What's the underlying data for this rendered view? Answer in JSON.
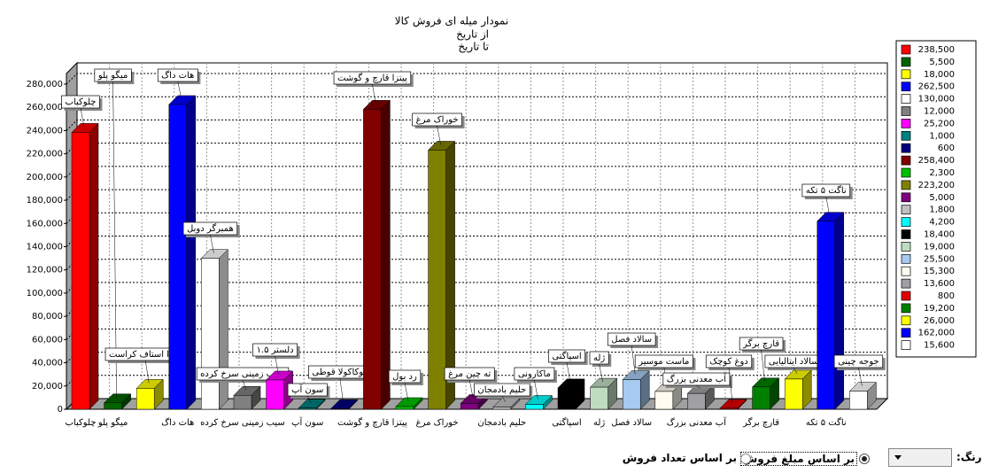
{
  "chart_data": {
    "type": "bar3d",
    "title": "نمودار میله ای فروش کالا",
    "subtitle_from": "از تاریخ",
    "subtitle_to": "تا تاریخ",
    "categories": [
      "چلوکباب",
      "میگو پلو",
      null,
      "هات داگ",
      null,
      "سیب زمینی سرخ کرده",
      null,
      "سون آپ",
      null,
      "پیتزا قارچ و گوشت",
      null,
      "خوراک مرغ",
      null,
      "حلیم بادمجان",
      null,
      "اسپاگتی",
      "ژله",
      "سالاد فصل",
      null,
      "آب معدنی بزرگ",
      null,
      "قارچ برگر",
      null,
      "ناگت ۵ تکه",
      null
    ],
    "bar_labels": [
      "چلوکباب",
      "میگو پلو",
      "پیتزا استاف کراست",
      "هات داگ",
      "همبرگر دوبل",
      "سیب زمینی سرخ کرده",
      "دلستر ۱.۵",
      "سون آپ",
      "کوکاکولا قوطی",
      "پیتزا قارچ و گوشت",
      "رد بول",
      "خوراک مرغ",
      "ته چین مرغ",
      "حلیم بادمجان",
      "ماکارونی",
      "اسپاگتی",
      "ژله",
      "سالاد فصل",
      "ماست موسیر",
      "آب معدنی بزرگ",
      "دوغ کوچک",
      "قارچ برگر",
      "سالاد ایتالیایی",
      "ناگت ۵ تکه",
      "جوجه چینی"
    ],
    "values": [
      238500,
      5500,
      18000,
      262500,
      130000,
      12000,
      25200,
      1000,
      600,
      258400,
      2300,
      223200,
      5000,
      1800,
      4200,
      18400,
      19000,
      25500,
      15300,
      13600,
      800,
      19200,
      26000,
      162000,
      15600
    ],
    "value_labels": [
      "238,500",
      "5,500",
      "18,000",
      "262,500",
      "130,000",
      "12,000",
      "25,200",
      "1,000",
      "600",
      "258,400",
      "2,300",
      "223,200",
      "5,000",
      "1,800",
      "4,200",
      "18,400",
      "19,000",
      "25,500",
      "15,300",
      "13,600",
      "800",
      "19,200",
      "26,000",
      "162,000",
      "15,600"
    ],
    "colors": [
      "#ff0000",
      "#006400",
      "#ffff00",
      "#0000ff",
      "#ffffff",
      "#808080",
      "#ff00ff",
      "#008080",
      "#000080",
      "#800000",
      "#00c000",
      "#808000",
      "#800080",
      "#c0c0c0",
      "#00ffff",
      "#000000",
      "#c0dcc0",
      "#a6caf0",
      "#fffbf0",
      "#a0a0a4",
      "#e00000",
      "#008000",
      "#ffff00",
      "#0000ff",
      "#ffffff"
    ],
    "ylim": [
      0,
      280000
    ],
    "yticks": [
      0,
      {
        "value": 20000,
        "label": "20,000"
      },
      {
        "value": 40000,
        "label": "40,000"
      },
      {
        "value": 60000,
        "label": "60,000"
      },
      {
        "value": 80000,
        "label": "80,000"
      },
      {
        "value": 100000,
        "label": "100,000"
      },
      {
        "value": 120000,
        "label": "120,000"
      },
      {
        "value": 140000,
        "label": "140,000"
      },
      {
        "value": 160000,
        "label": "160,000"
      },
      {
        "value": 180000,
        "label": "180,000"
      },
      {
        "value": 200000,
        "label": "200,000"
      },
      {
        "value": 220000,
        "label": "220,000"
      },
      {
        "value": 240000,
        "label": "240,000"
      },
      {
        "value": 260000,
        "label": "260,000"
      },
      {
        "value": 280000,
        "label": "280,000"
      }
    ],
    "grid": true
  },
  "controls": {
    "color_label": "رنگ:",
    "radio_amount": "بر اساس مبلغ فروش",
    "radio_count": "بر اساس تعداد فروش"
  }
}
